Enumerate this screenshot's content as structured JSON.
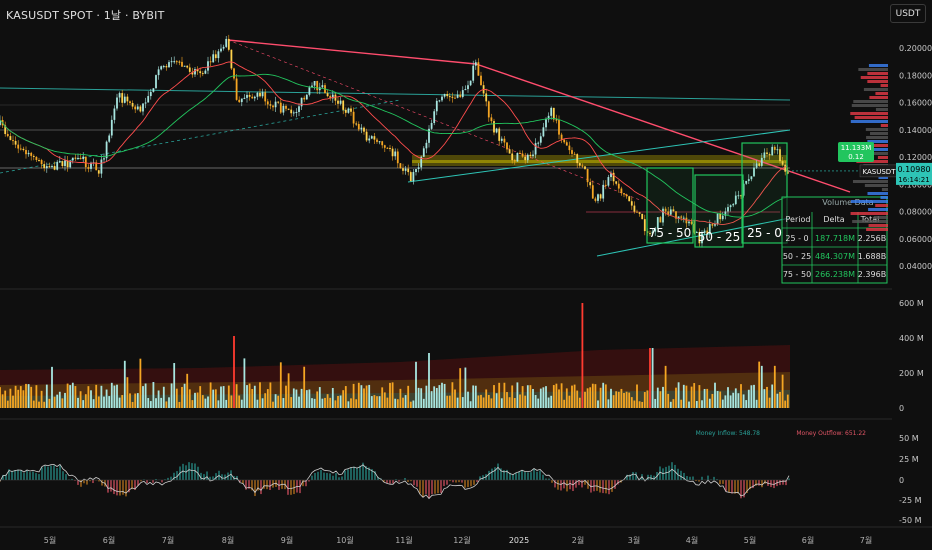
{
  "header": {
    "symbol_line": "KASUSDT SPOT · 1날 · BYBIT",
    "currency": "USDT"
  },
  "price_axis": [
    "0.20000",
    "0.18000",
    "0.16000",
    "0.14000",
    "0.12000",
    "0.10000",
    "0.08000",
    "0.06000",
    "0.04000"
  ],
  "volume_axis": [
    "600 M",
    "400 M",
    "200 M",
    "0"
  ],
  "flow_axis": [
    "50 M",
    "25 M",
    "0",
    "-25 M",
    "-50 M"
  ],
  "time_axis": [
    "5월",
    "6월",
    "7월",
    "8월",
    "9월",
    "10월",
    "11월",
    "12월",
    "2025",
    "2월",
    "3월",
    "4월",
    "5월",
    "6월",
    "7월"
  ],
  "last_price": {
    "symbol": "KASUSDT",
    "price": "0.10980",
    "countdown": "16:14:21"
  },
  "callout": {
    "line1": "11.133M",
    "line2": "0.12"
  },
  "boxes": [
    "75 - 50",
    "50 - 25",
    "25 - 0"
  ],
  "volume_table": {
    "title": "Volume Data",
    "headers": [
      "Period",
      "Delta",
      "Total"
    ],
    "rows": [
      [
        "25 - 0",
        "187.718M",
        "2.256B"
      ],
      [
        "50 - 25",
        "484.307M",
        "1.688B"
      ],
      [
        "75 - 50",
        "266.238M",
        "2.396B"
      ]
    ]
  },
  "money_flow": {
    "inflow": "Money Inflow: 548.78",
    "outflow": "Money Outflow: 651.22"
  },
  "chart_data": {
    "type": "candlestick",
    "title": "KASUSDT SPOT · 1날 · BYBIT",
    "x": [
      "2024-04-25",
      "2024-05-01",
      "2024-06-01",
      "2024-07-01",
      "2024-08-01",
      "2024-09-01",
      "2024-10-01",
      "2024-11-01",
      "2024-12-01",
      "2025-01-01",
      "2025-02-01",
      "2025-03-01",
      "2025-04-01",
      "2025-05-01",
      "2025-05-22"
    ],
    "close": [
      0.125,
      0.12,
      0.113,
      0.175,
      0.172,
      0.166,
      0.135,
      0.118,
      0.178,
      0.115,
      0.108,
      0.066,
      0.062,
      0.093,
      0.1098
    ],
    "ylim": [
      0.035,
      0.21
    ],
    "last": 0.1098,
    "colors": {
      "up": "#b2dfdb",
      "down": "#f5a623",
      "accent": "#ff3b30",
      "green": "#22c55e"
    }
  }
}
